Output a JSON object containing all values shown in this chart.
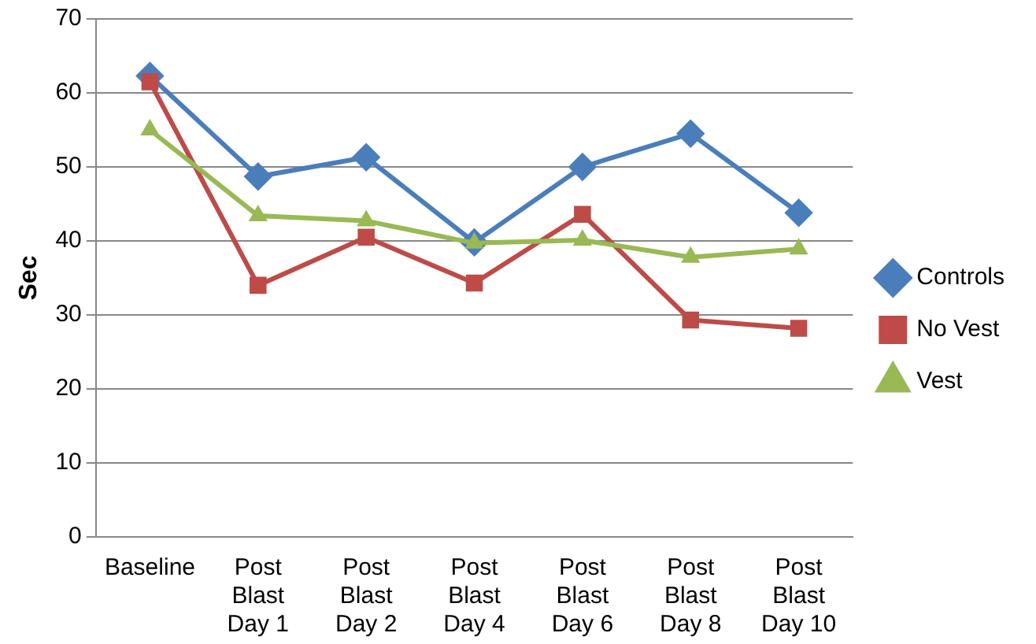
{
  "chart_data": {
    "type": "line",
    "ylabel": "Sec",
    "categories": [
      "Baseline",
      "Post\nBlast\nDay 1",
      "Post\nBlast\nDay 2",
      "Post\nBlast\nDay 4",
      "Post\nBlast\nDay 6",
      "Post\nBlast\nDay 8",
      "Post\nBlast\nDay 10"
    ],
    "series": [
      {
        "name": "Controls",
        "color": "#4a7ebb",
        "marker": "diamond",
        "values": [
          62.3,
          48.7,
          51.3,
          39.8,
          50.0,
          54.5,
          43.8
        ]
      },
      {
        "name": "No Vest",
        "color": "#be4b48",
        "marker": "square",
        "values": [
          61.5,
          34.0,
          40.5,
          34.3,
          43.6,
          29.3,
          28.2
        ]
      },
      {
        "name": "Vest",
        "color": "#98b954",
        "marker": "triangle",
        "values": [
          55.0,
          43.4,
          42.7,
          39.7,
          40.1,
          37.8,
          38.9
        ]
      }
    ],
    "ylim": [
      0,
      70
    ],
    "yticks": [
      0,
      10,
      20,
      30,
      40,
      50,
      60,
      70
    ],
    "grid": "y",
    "legend": "right"
  }
}
